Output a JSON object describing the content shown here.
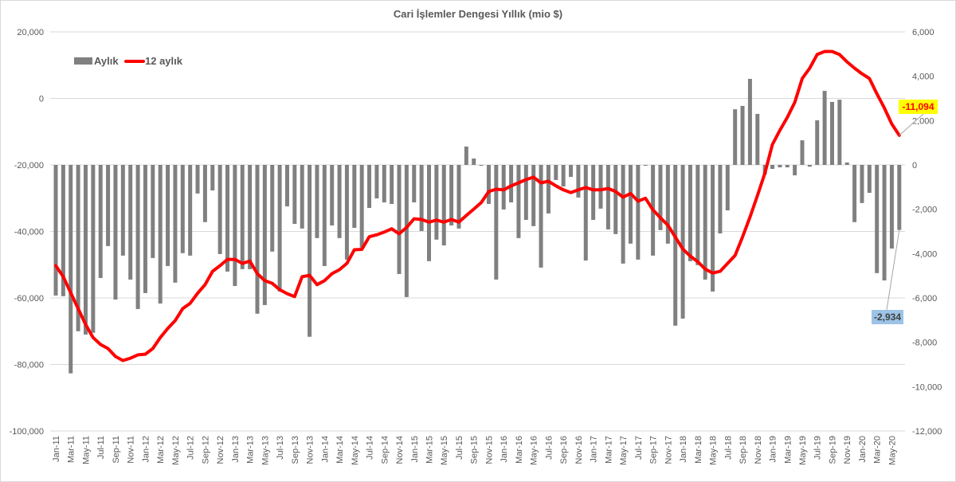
{
  "chart_data": {
    "type": "bar+line",
    "title": "Cari İşlemler Dengesi Yıllık (mio $)",
    "x_tick_labels": [
      "Jan-11",
      "Mar-11",
      "May-11",
      "Jul-11",
      "Sep-11",
      "Nov-11",
      "Jan-12",
      "Mar-12",
      "May-12",
      "Jul-12",
      "Sep-12",
      "Nov-12",
      "Jan-13",
      "Mar-13",
      "May-13",
      "Jul-13",
      "Sep-13",
      "Nov-13",
      "Jan-14",
      "Mar-14",
      "May-14",
      "Jul-14",
      "Sep-14",
      "Nov-14",
      "Jan-15",
      "Mar-15",
      "May-15",
      "Jul-15",
      "Sep-15",
      "Nov-15",
      "Jan-16",
      "Mar-16",
      "May-16",
      "Jul-16",
      "Sep-16",
      "Nov-16",
      "Jan-17",
      "Mar-17",
      "May-17",
      "Jul-17",
      "Sep-17",
      "Nov-17",
      "Jan-18",
      "Mar-18",
      "May-18",
      "Jul-18",
      "Sep-18",
      "Nov-18",
      "Jan-19",
      "Mar-19",
      "May-19",
      "Jul-19",
      "Sep-19",
      "Nov-19",
      "Jan-20",
      "Mar-20",
      "May-20"
    ],
    "x_tick_every_months": 2,
    "left_axis": {
      "min": -100000,
      "max": 20000,
      "step": 20000,
      "ticks": [
        "-100,000",
        "-80,000",
        "-60,000",
        "-40,000",
        "-20,000",
        "0",
        "20,000"
      ]
    },
    "right_axis": {
      "min": -12000,
      "max": 6000,
      "step": 2000,
      "ticks": [
        "-12,000",
        "-10,000",
        "-8,000",
        "-6,000",
        "-4,000",
        "-2,000",
        "0",
        "2,000",
        "4,000",
        "6,000"
      ]
    },
    "grid": true,
    "legend_position": "top-left",
    "series": [
      {
        "name": "Aylık",
        "type": "bar",
        "axis": "right",
        "color": "#808080",
        "values": [
          -5890,
          -5920,
          -9400,
          -7500,
          -7650,
          -7570,
          -5100,
          -3660,
          -6070,
          -4090,
          -5170,
          -6500,
          -5780,
          -4200,
          -6250,
          -4560,
          -5310,
          -3980,
          -4090,
          -1290,
          -2580,
          -1150,
          -4020,
          -4810,
          -5460,
          -4700,
          -4700,
          -6710,
          -6320,
          -3910,
          -5710,
          -1870,
          -2660,
          -2870,
          -7750,
          -3300,
          -4560,
          -2730,
          -3300,
          -4270,
          -2840,
          -3730,
          -1940,
          -1510,
          -1690,
          -1760,
          -4920,
          -5960,
          -1690,
          -2980,
          -4340,
          -3370,
          -3630,
          -2730,
          -2870,
          830,
          290,
          -30,
          -1760,
          -5170,
          -2010,
          -1690,
          -3300,
          -2480,
          -2760,
          -4630,
          -2190,
          -680,
          -970,
          -540,
          -1470,
          -4310,
          -2480,
          -1970,
          -2910,
          -3120,
          -4450,
          -3550,
          -4270,
          -20,
          -4090,
          -2940,
          -3550,
          -7250,
          -6930,
          -4340,
          -4520,
          -5170,
          -5710,
          -3090,
          -2050,
          2510,
          2660,
          3880,
          2300,
          -430,
          -180,
          -110,
          -110,
          -470,
          1110,
          -80,
          2010,
          3340,
          2840,
          2940,
          110,
          -2580,
          -1720,
          -1260,
          -4880,
          -5210,
          -3770,
          -2934
        ]
      },
      {
        "name": "12 aylık",
        "type": "line",
        "axis": "left",
        "color": "#ff0000",
        "values": [
          -50300,
          -53600,
          -58400,
          -63200,
          -68000,
          -71900,
          -74000,
          -75200,
          -77600,
          -78800,
          -78100,
          -77100,
          -76900,
          -75200,
          -71900,
          -69200,
          -66800,
          -63200,
          -61600,
          -58600,
          -56000,
          -52000,
          -50300,
          -48400,
          -48400,
          -49600,
          -48900,
          -52700,
          -54800,
          -55600,
          -57500,
          -58700,
          -59600,
          -53600,
          -53200,
          -56000,
          -54800,
          -52700,
          -51500,
          -49600,
          -45500,
          -45400,
          -41600,
          -41000,
          -40200,
          -39200,
          -40700,
          -38800,
          -36200,
          -36400,
          -37200,
          -36600,
          -37200,
          -36400,
          -37200,
          -35200,
          -33300,
          -31300,
          -28000,
          -27300,
          -27500,
          -26300,
          -25400,
          -24400,
          -23700,
          -25400,
          -24900,
          -26300,
          -27500,
          -28300,
          -27500,
          -26800,
          -27500,
          -27500,
          -27100,
          -28000,
          -29700,
          -28600,
          -30900,
          -30000,
          -33500,
          -35900,
          -38100,
          -41700,
          -45300,
          -47400,
          -49100,
          -51300,
          -52500,
          -52000,
          -49600,
          -47200,
          -41700,
          -35700,
          -29200,
          -22500,
          -13900,
          -9600,
          -5700,
          -1200,
          6000,
          9100,
          13200,
          14100,
          14100,
          13200,
          11000,
          9100,
          7400,
          6000,
          1400,
          -2900,
          -7700,
          -11094
        ]
      }
    ],
    "annotations": [
      {
        "text": "-11,094",
        "series": "12 aylık",
        "background": "#ffff00",
        "color": "#ff0000"
      },
      {
        "text": "-2,934",
        "series": "Aylık",
        "background": "#9dc3e6",
        "color": "#404040"
      }
    ]
  }
}
